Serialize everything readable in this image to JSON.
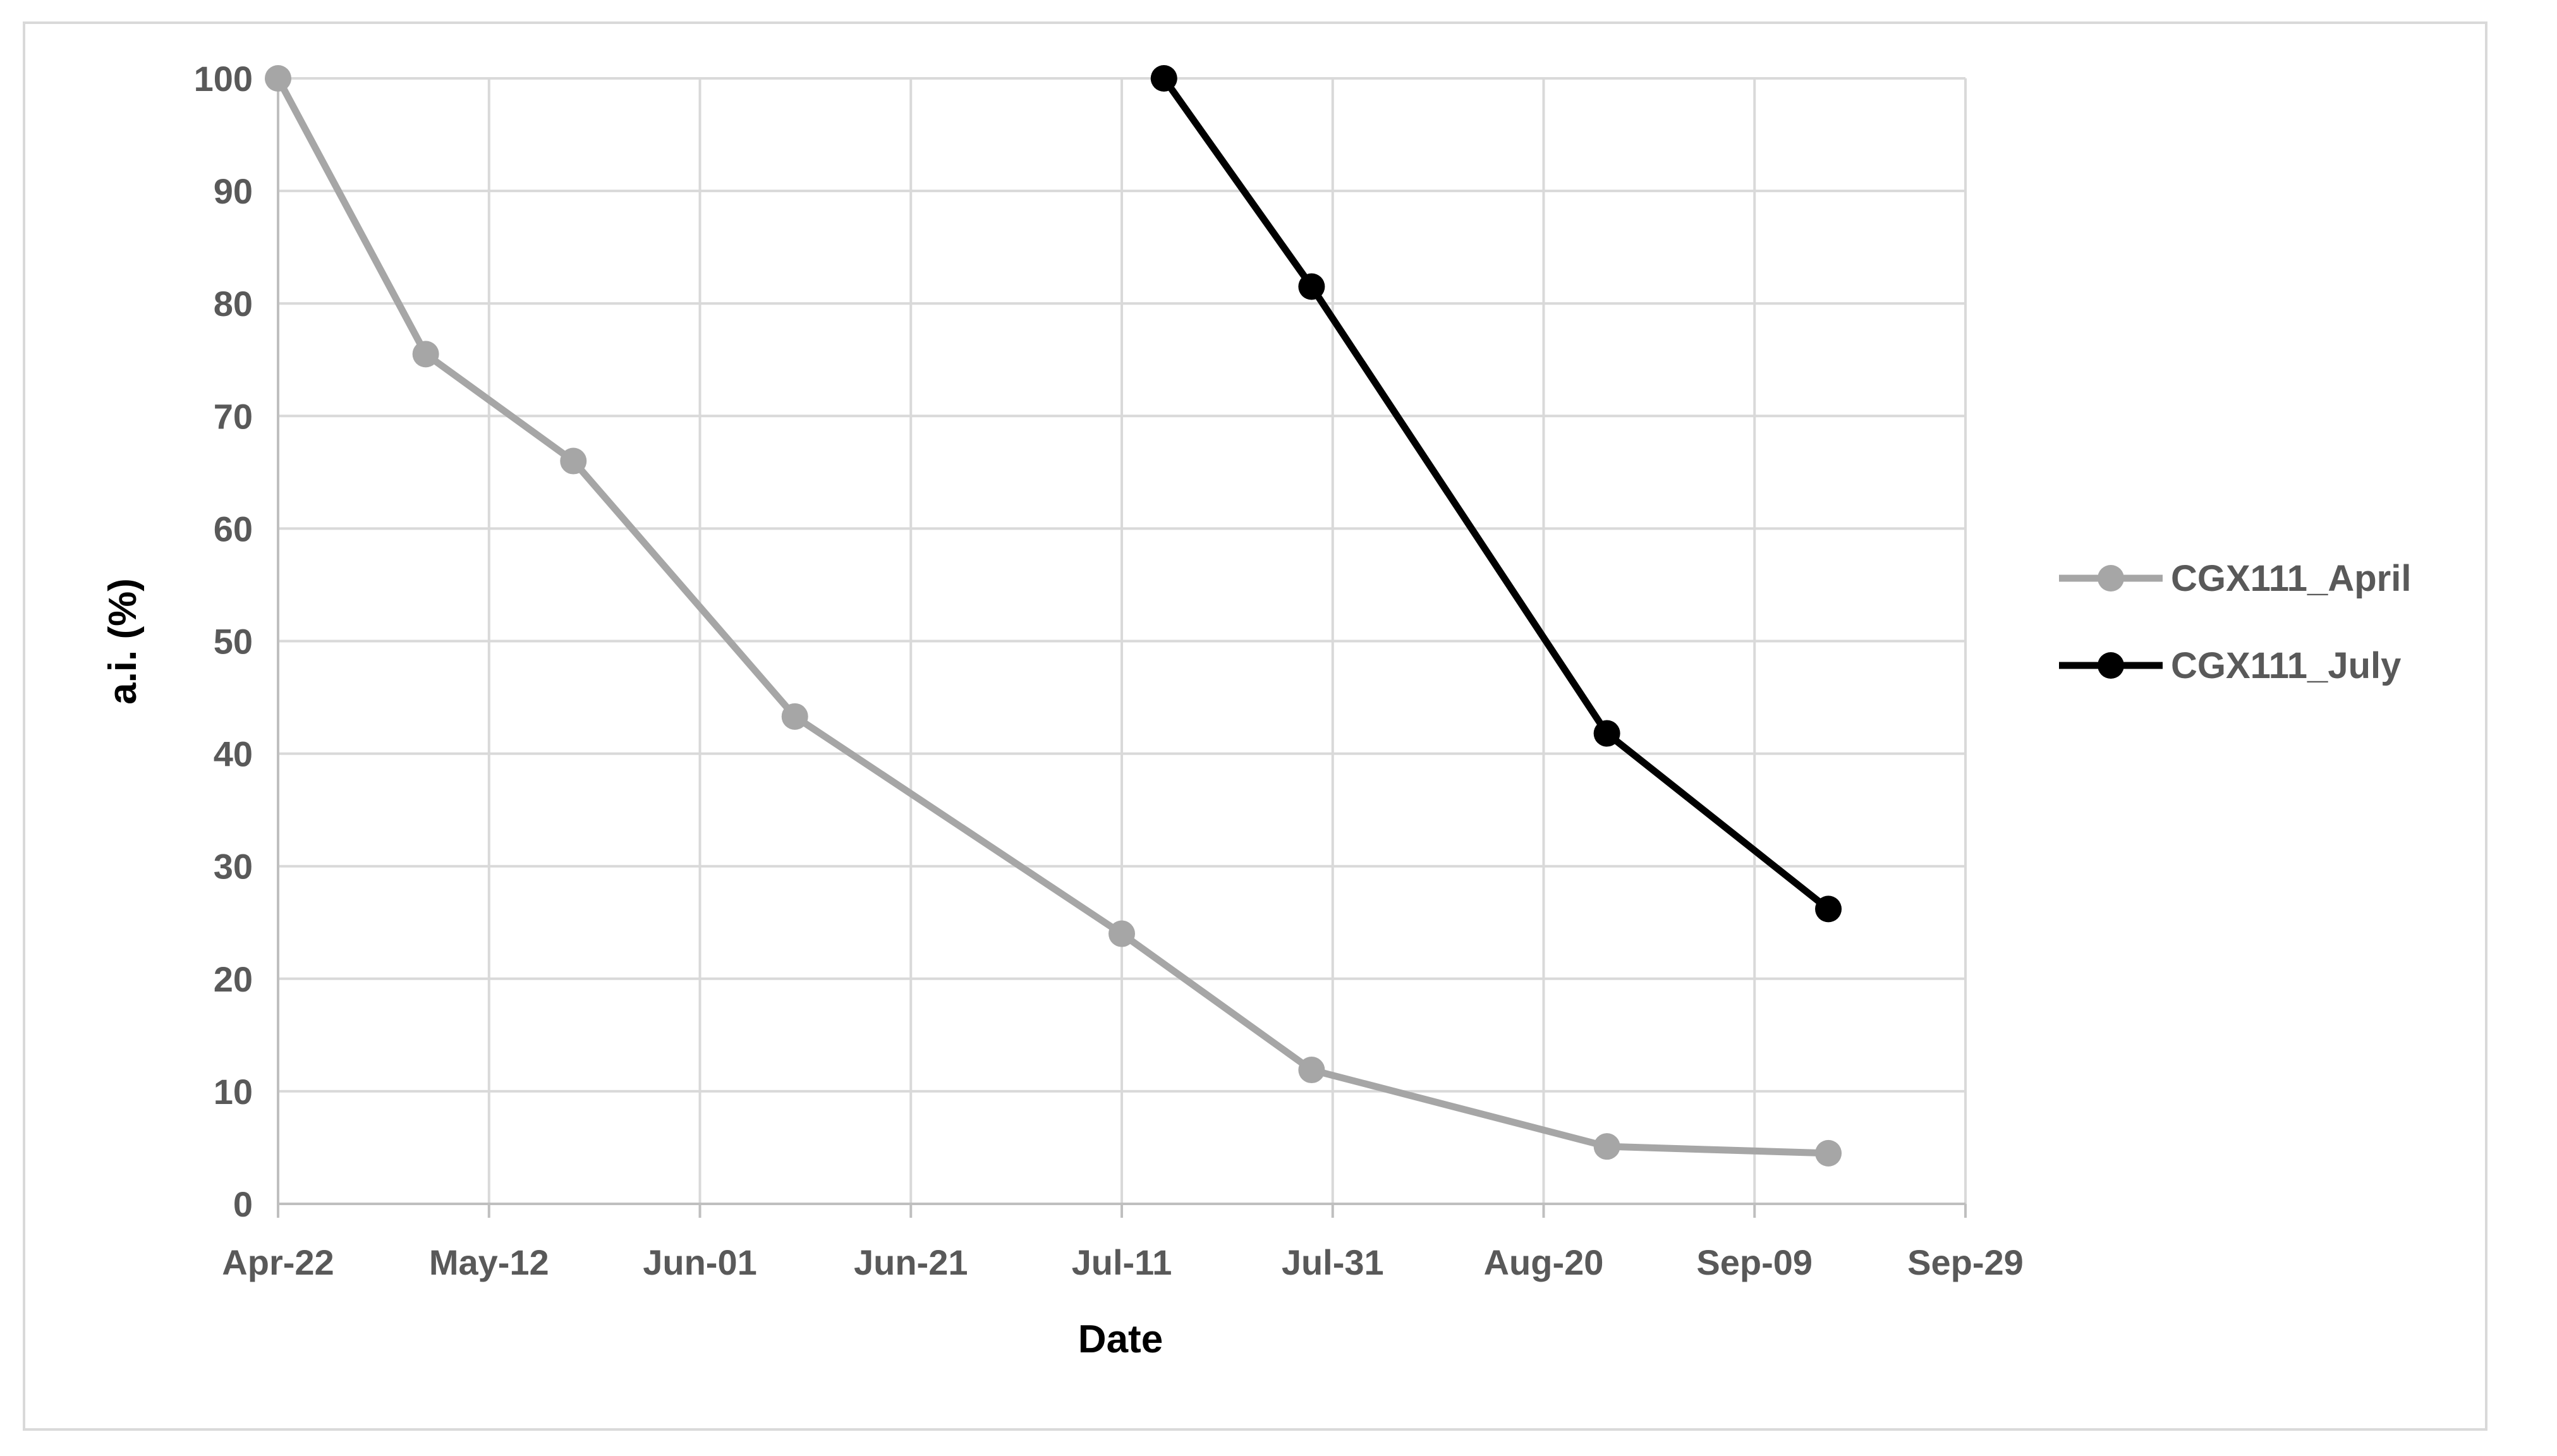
{
  "chart_data": {
    "type": "line",
    "title": "",
    "xlabel": "Date",
    "ylabel": "a.i. (%)",
    "x_ticks": [
      "Apr-22",
      "May-12",
      "Jun-01",
      "Jun-21",
      "Jul-11",
      "Jul-31",
      "Aug-20",
      "Sep-09",
      "Sep-29"
    ],
    "x_tick_dates": [
      "2000-04-22",
      "2000-05-12",
      "2000-06-01",
      "2000-06-21",
      "2000-07-11",
      "2000-07-31",
      "2000-08-20",
      "2000-09-09",
      "2000-09-29"
    ],
    "xlim": [
      "2000-04-22",
      "2000-09-29"
    ],
    "y_ticks": [
      0,
      10,
      20,
      30,
      40,
      50,
      60,
      70,
      80,
      90,
      100
    ],
    "ylim": [
      0,
      100
    ],
    "grid": true,
    "legend_position": "right",
    "series": [
      {
        "name": "CGX111_April",
        "color": "#a6a6a6",
        "marker": "circle",
        "points": [
          {
            "x": "2000-04-22",
            "y": 100
          },
          {
            "x": "2000-05-06",
            "y": 75.5
          },
          {
            "x": "2000-05-20",
            "y": 66
          },
          {
            "x": "2000-06-10",
            "y": 43.3
          },
          {
            "x": "2000-07-11",
            "y": 24
          },
          {
            "x": "2000-07-29",
            "y": 11.9
          },
          {
            "x": "2000-08-26",
            "y": 5.1
          },
          {
            "x": "2000-09-16",
            "y": 4.5
          }
        ]
      },
      {
        "name": "CGX111_July",
        "color": "#000000",
        "marker": "circle",
        "points": [
          {
            "x": "2000-07-15",
            "y": 100
          },
          {
            "x": "2000-07-29",
            "y": 81.5
          },
          {
            "x": "2000-08-26",
            "y": 41.8
          },
          {
            "x": "2000-09-16",
            "y": 26.2
          }
        ]
      }
    ]
  }
}
